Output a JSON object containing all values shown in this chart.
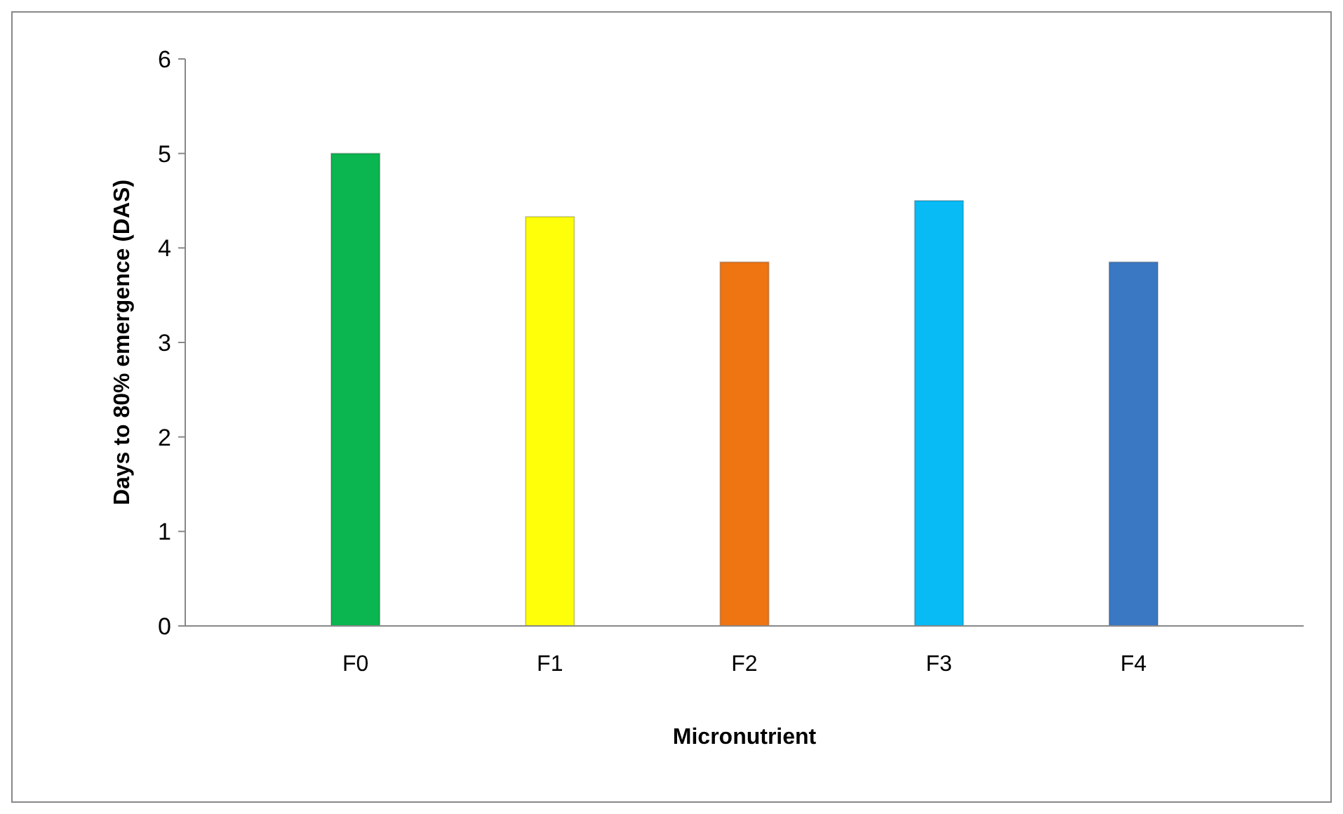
{
  "chart_data": {
    "type": "bar",
    "xlabel": "Micronutrient",
    "ylabel": "Days to 80% emergence (DAS)",
    "categories": [
      "F0",
      "F1",
      "F2",
      "F3",
      "F4"
    ],
    "values": [
      5.0,
      4.33,
      3.85,
      4.5,
      3.85
    ],
    "colors": [
      "#0bb550",
      "#ffff0a",
      "#ef7412",
      "#08bbf5",
      "#3a78c4"
    ],
    "ylim": [
      0,
      6
    ],
    "yticks": [
      0,
      1,
      2,
      3,
      4,
      5,
      6
    ],
    "grid": false
  }
}
